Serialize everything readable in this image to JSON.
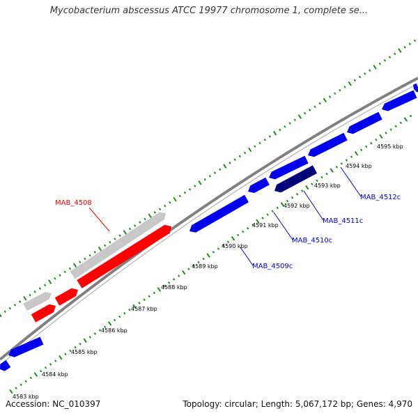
{
  "title": "Mycobacterium abscessus ATCC 19977 chromosome 1, complete se...",
  "footer": {
    "accession": "Accession: NC_010397",
    "summary": "Topology: circular; Length: 5,067,172 bp; Genes: 4,970"
  },
  "colors": {
    "forward_strand_gene": "#0000ee",
    "reverse_strand_gene": "#ff0000",
    "pseudo_gene": "#c8c8c8",
    "highlighted_gene": "#00007a",
    "ruler_tick": "#1f8a1f",
    "backbone": "#808080",
    "gene_label_blue": "#0000cc",
    "gene_label_red": "#ee0000"
  },
  "scale_labels": [
    "4583 kbp",
    "4584 kbp",
    "4585 kbp",
    "4586 kbp",
    "4587 kbp",
    "4588 kbp",
    "4589 kbp",
    "4590 kbp",
    "4591 kbp",
    "4592 kbp",
    "4593 kbp",
    "4594 kbp",
    "4595 kbp"
  ],
  "gene_labels": [
    {
      "text": "MAB_4508",
      "color": "red"
    },
    {
      "text": "MAB_4509c",
      "color": "blue"
    },
    {
      "text": "MAB_4510c",
      "color": "blue"
    },
    {
      "text": "MAB_4511c",
      "color": "blue"
    },
    {
      "text": "MAB_4512c",
      "color": "blue"
    }
  ]
}
